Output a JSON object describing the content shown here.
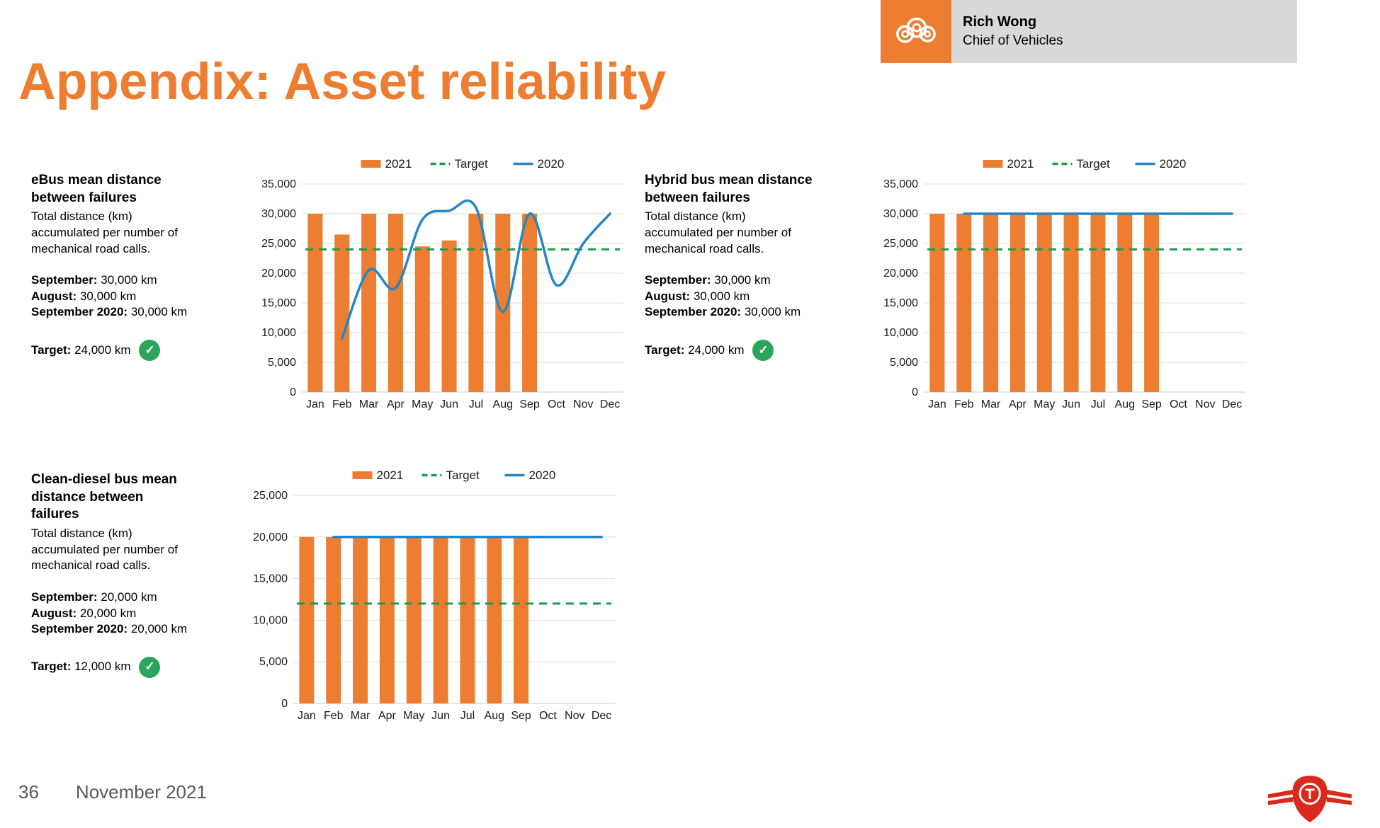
{
  "page": {
    "title": "Appendix: Asset reliability",
    "page_number": "36",
    "date": "November 2021"
  },
  "presenter": {
    "name": "Rich Wong",
    "title": "Chief of Vehicles"
  },
  "icons": {
    "check": "✓"
  },
  "colors": {
    "accent_orange": "#ED7D31",
    "target_green": "#1E9C4D",
    "line_blue": "#2585C5",
    "check_green": "#29A65B",
    "badge_gray": "#D9D9D9",
    "logo_red": "#DA291C"
  },
  "panels": [
    {
      "heading": "eBus mean distance between failures",
      "description": "Total distance (km) accumulated per number of mechanical road calls.",
      "stats": [
        {
          "label": "September:",
          "value": "30,000 km"
        },
        {
          "label": "August:",
          "value": "30,000 km"
        },
        {
          "label": "September 2020:",
          "value": "30,000 km"
        }
      ],
      "target": {
        "label": "Target:",
        "value": "24,000 km",
        "met": true
      }
    },
    {
      "heading": "Hybrid bus mean distance between failures",
      "description": "Total distance (km) accumulated per number of mechanical road calls.",
      "stats": [
        {
          "label": "September:",
          "value": "30,000 km"
        },
        {
          "label": "August:",
          "value": "30,000 km"
        },
        {
          "label": "September 2020:",
          "value": "30,000 km"
        }
      ],
      "target": {
        "label": "Target:",
        "value": "24,000 km",
        "met": true
      }
    },
    {
      "heading": "Clean-diesel bus mean distance between failures",
      "description": "Total distance (km) accumulated per number of mechanical road calls.",
      "stats": [
        {
          "label": "September:",
          "value": "20,000 km"
        },
        {
          "label": "August:",
          "value": "20,000 km"
        },
        {
          "label": "September 2020:",
          "value": "20,000 km"
        }
      ],
      "target": {
        "label": "Target:",
        "value": "12,000 km",
        "met": true
      }
    }
  ],
  "chart_data": [
    {
      "type": "bar",
      "title": "eBus mean distance between failures",
      "categories": [
        "Jan",
        "Feb",
        "Mar",
        "Apr",
        "May",
        "Jun",
        "Jul",
        "Aug",
        "Sep",
        "Oct",
        "Nov",
        "Dec"
      ],
      "ylim": [
        0,
        35000
      ],
      "ytick_step": 5000,
      "legend_position": "top",
      "series": [
        {
          "name": "2021",
          "kind": "bar",
          "color": "#ED7D31",
          "values": [
            30000,
            26500,
            30000,
            30000,
            24500,
            25500,
            30000,
            30000,
            30000,
            null,
            null,
            null
          ]
        },
        {
          "name": "Target",
          "kind": "dash",
          "color": "#1E9C4D",
          "value": 24000
        },
        {
          "name": "2020",
          "kind": "line",
          "color": "#2585C5",
          "smooth": true,
          "values": [
            null,
            9000,
            20500,
            17500,
            29000,
            30500,
            31000,
            13500,
            30000,
            18000,
            25000,
            30000
          ]
        }
      ]
    },
    {
      "type": "bar",
      "title": "Hybrid bus mean distance between failures",
      "categories": [
        "Jan",
        "Feb",
        "Mar",
        "Apr",
        "May",
        "Jun",
        "Jul",
        "Aug",
        "Sep",
        "Oct",
        "Nov",
        "Dec"
      ],
      "ylim": [
        0,
        35000
      ],
      "ytick_step": 5000,
      "legend_position": "top",
      "series": [
        {
          "name": "2021",
          "kind": "bar",
          "color": "#ED7D31",
          "values": [
            30000,
            30000,
            30000,
            30000,
            30000,
            30000,
            30000,
            30000,
            30000,
            null,
            null,
            null
          ]
        },
        {
          "name": "Target",
          "kind": "dash",
          "color": "#1E9C4D",
          "value": 24000
        },
        {
          "name": "2020",
          "kind": "line",
          "color": "#2585C5",
          "smooth": false,
          "values": [
            null,
            30000,
            30000,
            30000,
            30000,
            30000,
            30000,
            30000,
            30000,
            30000,
            30000,
            30000
          ]
        }
      ]
    },
    {
      "type": "bar",
      "title": "Clean-diesel bus mean distance between failures",
      "categories": [
        "Jan",
        "Feb",
        "Mar",
        "Apr",
        "May",
        "Jun",
        "Jul",
        "Aug",
        "Sep",
        "Oct",
        "Nov",
        "Dec"
      ],
      "ylim": [
        0,
        25000
      ],
      "ytick_step": 5000,
      "legend_position": "top",
      "series": [
        {
          "name": "2021",
          "kind": "bar",
          "color": "#ED7D31",
          "values": [
            20000,
            20000,
            20000,
            20000,
            20000,
            20000,
            20000,
            20000,
            20000,
            null,
            null,
            null
          ]
        },
        {
          "name": "Target",
          "kind": "dash",
          "color": "#1E9C4D",
          "value": 12000
        },
        {
          "name": "2020",
          "kind": "line",
          "color": "#2585C5",
          "smooth": false,
          "values": [
            null,
            20000,
            20000,
            20000,
            20000,
            20000,
            20000,
            20000,
            20000,
            20000,
            20000,
            20000
          ]
        }
      ]
    }
  ]
}
